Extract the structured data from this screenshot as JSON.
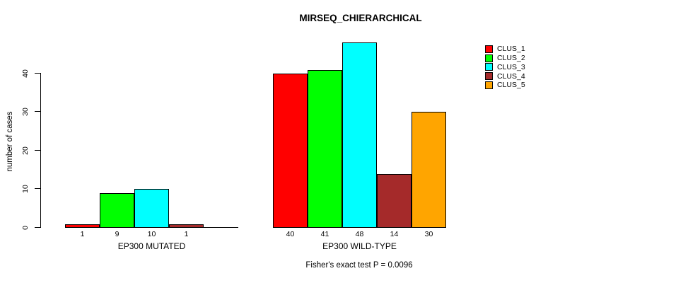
{
  "chart_data": {
    "type": "bar",
    "title": "MIRSEQ_CHIERARCHICAL",
    "ylabel": "number of cases",
    "xlabel": "",
    "ylim": [
      0,
      48
    ],
    "yticks": [
      0,
      10,
      20,
      30,
      40
    ],
    "grid": false,
    "legend_position": "top-right",
    "categories": [
      "EP300 MUTATED",
      "EP300 WILD-TYPE"
    ],
    "series": [
      {
        "name": "CLUS_1",
        "color": "#FF0000",
        "values": [
          1,
          40
        ]
      },
      {
        "name": "CLUS_2",
        "color": "#00FF00",
        "values": [
          9,
          41
        ]
      },
      {
        "name": "CLUS_3",
        "color": "#00FFFF",
        "values": [
          10,
          48
        ]
      },
      {
        "name": "CLUS_4",
        "color": "#A52A2A",
        "values": [
          1,
          14
        ]
      },
      {
        "name": "CLUS_5",
        "color": "#FFA500",
        "values": [
          0,
          30
        ]
      }
    ],
    "bar_value_labels": [
      [
        "1",
        "9",
        "10",
        "1",
        ""
      ],
      [
        "40",
        "41",
        "48",
        "14",
        "30"
      ]
    ],
    "annotation": "Fisher's exact test P = 0.0096"
  },
  "colors": {
    "axis": "#000000",
    "background": "#ffffff"
  }
}
